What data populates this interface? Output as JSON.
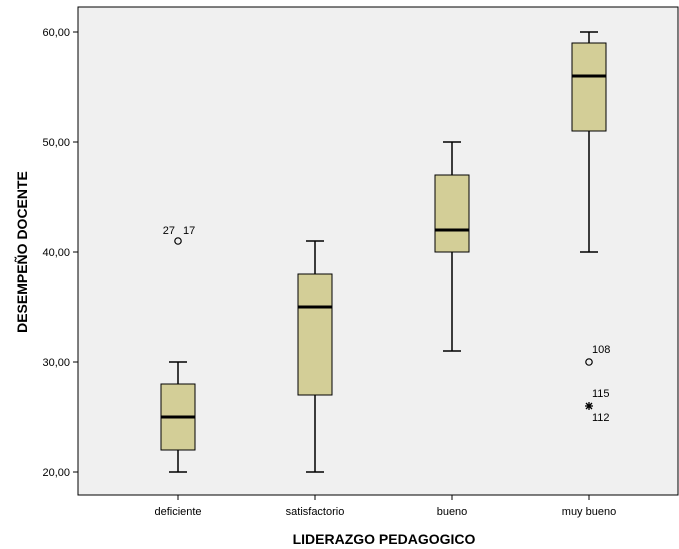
{
  "chart_data": {
    "type": "boxplot",
    "title": "",
    "xlabel": "LIDERAZGO PEDAGOGICO",
    "ylabel": "DESEMPEÑO DOCENTE",
    "ylim": [
      18,
      62.5
    ],
    "yticks": [
      20,
      30,
      40,
      50,
      60
    ],
    "ytick_labels": [
      "20,00",
      "30,00",
      "40,00",
      "50,00",
      "60,00"
    ],
    "grid": false,
    "plot_background": "#f0f0f0",
    "box_color": "#d3ce97",
    "categories": [
      "deficiente",
      "satisfactorio",
      "bueno",
      "muy bueno"
    ],
    "boxes": [
      {
        "category": "deficiente",
        "whisker_low": 20,
        "q1": 22,
        "median": 25,
        "q3": 28,
        "whisker_high": 30,
        "outliers": [
          {
            "value": 41,
            "marker": "circle",
            "labels": [
              "27",
              "17"
            ]
          }
        ]
      },
      {
        "category": "satisfactorio",
        "whisker_low": 20,
        "q1": 27,
        "median": 35,
        "q3": 38,
        "whisker_high": 41,
        "outliers": []
      },
      {
        "category": "bueno",
        "whisker_low": 31,
        "q1": 40,
        "median": 42,
        "q3": 47,
        "whisker_high": 50,
        "outliers": []
      },
      {
        "category": "muy bueno",
        "whisker_low": 40,
        "q1": 51,
        "median": 56,
        "q3": 59,
        "whisker_high": 60,
        "outliers": [
          {
            "value": 30,
            "marker": "circle",
            "labels": [
              "108"
            ]
          },
          {
            "value": 26,
            "marker": "star",
            "labels": [
              "115",
              "112"
            ]
          }
        ]
      }
    ]
  }
}
